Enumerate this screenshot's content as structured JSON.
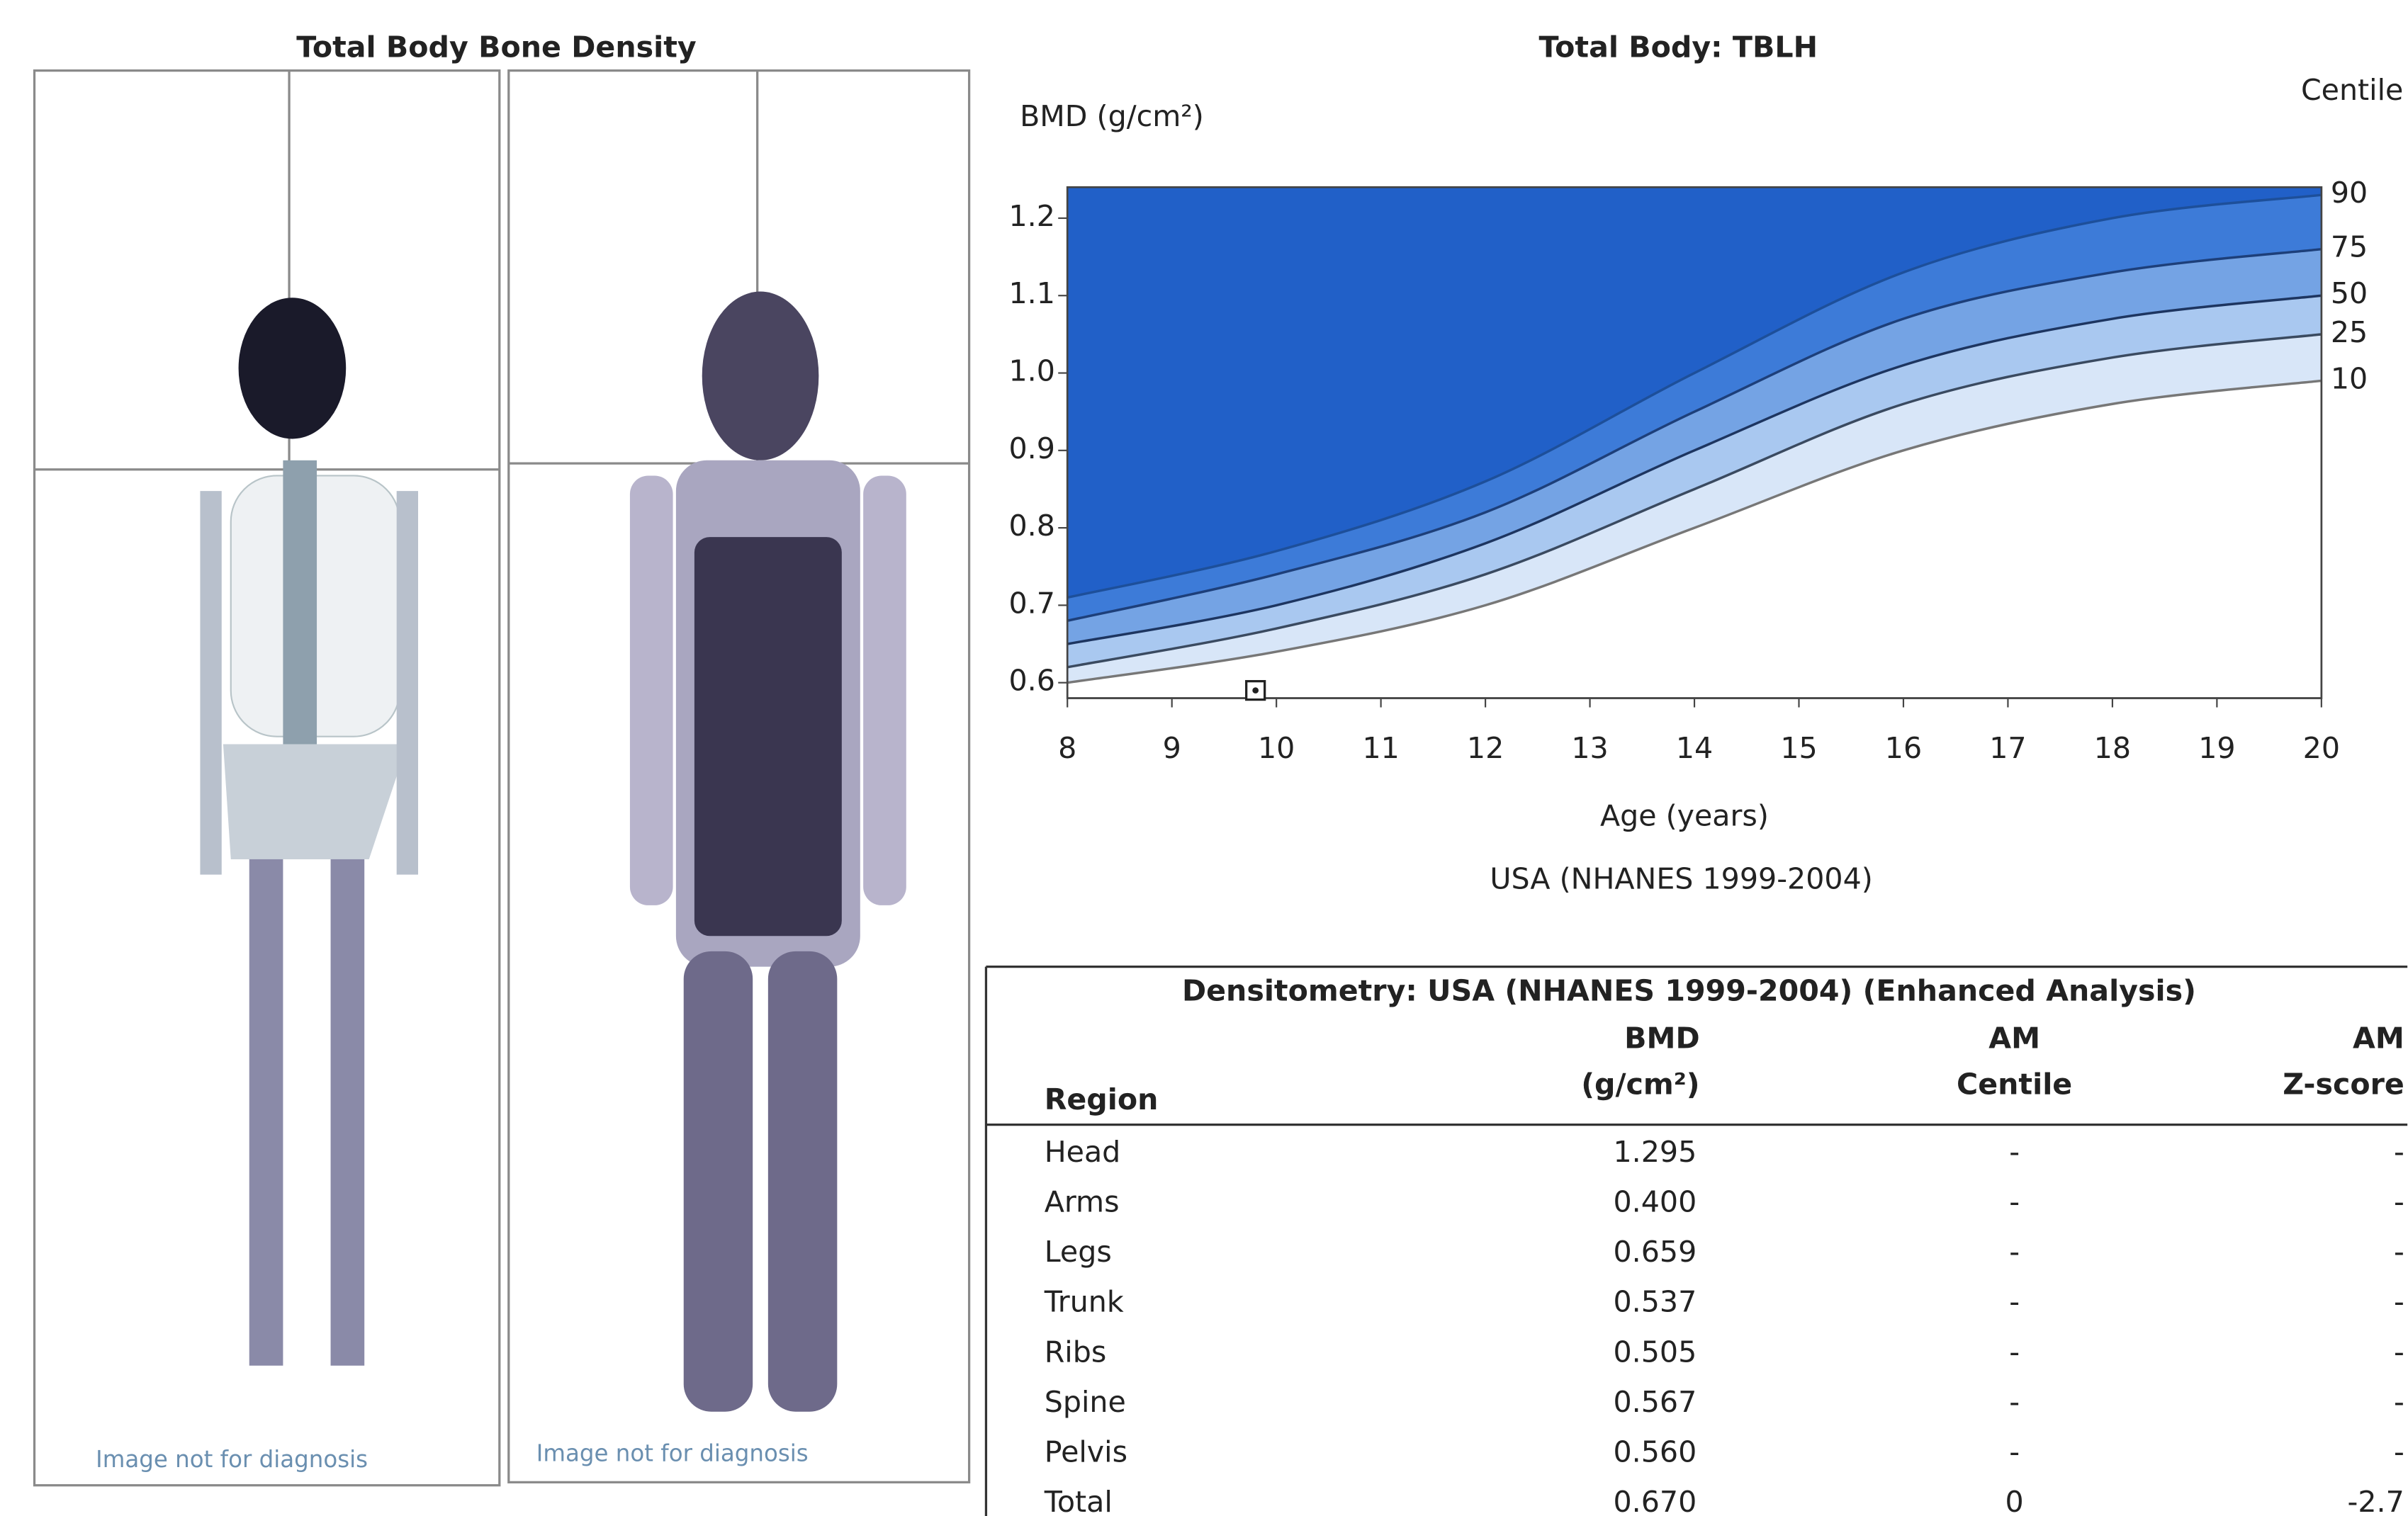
{
  "scan": {
    "title": "Total Body Bone Density",
    "panels": [
      "Image not for diagnosis",
      "Image not for diagnosis"
    ]
  },
  "chart_data": {
    "type": "line",
    "title": "Total Body: TBLH",
    "y_label": "BMD (g/cm²)",
    "legend_title": "Centile",
    "x_label": "Age (years)",
    "subtitle": "USA (NHANES 1999-2004)",
    "x": [
      8,
      10,
      12,
      14,
      16,
      18,
      20
    ],
    "series": [
      {
        "name": "90",
        "color": "#1d4f9a",
        "values": [
          0.71,
          0.77,
          0.86,
          1.0,
          1.13,
          1.2,
          1.23
        ]
      },
      {
        "name": "75",
        "color": "#1d3f7a",
        "values": [
          0.68,
          0.74,
          0.82,
          0.95,
          1.07,
          1.13,
          1.16
        ]
      },
      {
        "name": "50",
        "color": "#1d3560",
        "values": [
          0.65,
          0.7,
          0.78,
          0.9,
          1.01,
          1.07,
          1.1
        ]
      },
      {
        "name": "25",
        "color": "#3a4a60",
        "values": [
          0.62,
          0.67,
          0.74,
          0.85,
          0.96,
          1.02,
          1.05
        ]
      },
      {
        "name": "10",
        "color": "#777777",
        "values": [
          0.6,
          0.64,
          0.7,
          0.8,
          0.9,
          0.96,
          0.99
        ]
      }
    ],
    "band_colors": [
      "#2160c8",
      "#3d7bd8",
      "#74a3e4",
      "#a9c8f0",
      "#d8e6f8"
    ],
    "patient": {
      "x": 9.8,
      "y": 0.59
    },
    "xlim": [
      8,
      20
    ],
    "ylim": [
      0.58,
      1.24
    ],
    "xticks": [
      8,
      9,
      10,
      11,
      12,
      13,
      14,
      15,
      16,
      17,
      18,
      19,
      20
    ],
    "yticks": [
      0.6,
      0.7,
      0.8,
      0.9,
      {
        "value": 1,
        "label": "1.0"
      },
      1.1,
      1.2
    ]
  },
  "table": {
    "title": "Densitometry: USA (NHANES 1999-2004) (Enhanced Analysis)",
    "columns": [
      [
        "Region"
      ],
      [
        "BMD",
        "(g/cm²)"
      ],
      [
        "AM",
        "Centile"
      ],
      [
        "AM",
        "Z-score"
      ]
    ],
    "rows": [
      [
        "Head",
        "1.295",
        "-",
        "-"
      ],
      [
        "Arms",
        "0.400",
        "-",
        "-"
      ],
      [
        "Legs",
        "0.659",
        "-",
        "-"
      ],
      [
        "Trunk",
        "0.537",
        "-",
        "-"
      ],
      [
        "Ribs",
        "0.505",
        "-",
        "-"
      ],
      [
        "Spine",
        "0.567",
        "-",
        "-"
      ],
      [
        "Pelvis",
        "0.560",
        "-",
        "-"
      ],
      [
        "Total",
        "0.670",
        "0",
        "-2.7"
      ]
    ]
  }
}
